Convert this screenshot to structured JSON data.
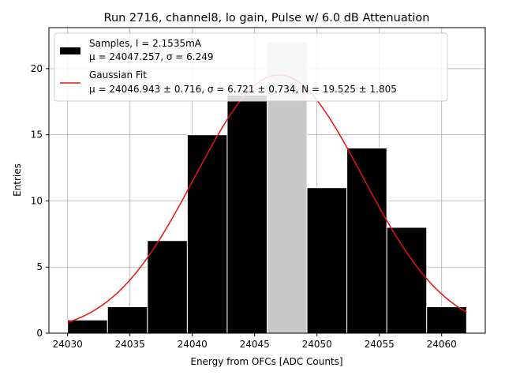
{
  "chart_data": {
    "type": "bar",
    "title": "Run 2716, channel8, lo gain, Pulse w/ 6.0 dB Attenuation",
    "xlabel": "Energy from OFCs [ADC Counts]",
    "ylabel": "Entries",
    "xlim": [
      24028.5,
      24063.5
    ],
    "ylim": [
      0,
      23.1
    ],
    "xticks": [
      24030,
      24035,
      24040,
      24045,
      24050,
      24055,
      24060
    ],
    "yticks": [
      0,
      5,
      10,
      15,
      20
    ],
    "grid": true,
    "legend_position": "upper-left",
    "bins": [
      {
        "x0": 24030.0,
        "x1": 24033.2,
        "count": 1
      },
      {
        "x0": 24033.2,
        "x1": 24036.4,
        "count": 2
      },
      {
        "x0": 24036.4,
        "x1": 24039.6,
        "count": 7
      },
      {
        "x0": 24039.6,
        "x1": 24042.8,
        "count": 15
      },
      {
        "x0": 24042.8,
        "x1": 24046.0,
        "count": 18
      },
      {
        "x0": 24046.0,
        "x1": 24049.2,
        "count": 22,
        "highlight": true
      },
      {
        "x0": 24049.2,
        "x1": 24052.4,
        "count": 11
      },
      {
        "x0": 24052.4,
        "x1": 24055.6,
        "count": 14
      },
      {
        "x0": 24055.6,
        "x1": 24058.8,
        "count": 8
      },
      {
        "x0": 24058.8,
        "x1": 24062.0,
        "count": 2
      }
    ],
    "fit": {
      "mu": 24046.943,
      "sigma": 6.721,
      "N": 19.525,
      "x_range": [
        24030,
        24062
      ]
    },
    "series": [
      {
        "name": "Samples, I = 2.1535mA",
        "stats": "μ = 24047.257, σ = 6.249",
        "color": "#000000",
        "highlight_color": "#c8c8c8"
      },
      {
        "name": "Gaussian Fit",
        "stats": "μ = 24046.943 ± 0.716, σ = 6.721 ± 0.734, N = 19.525 ± 1.805",
        "color": "#e8120c"
      }
    ]
  }
}
